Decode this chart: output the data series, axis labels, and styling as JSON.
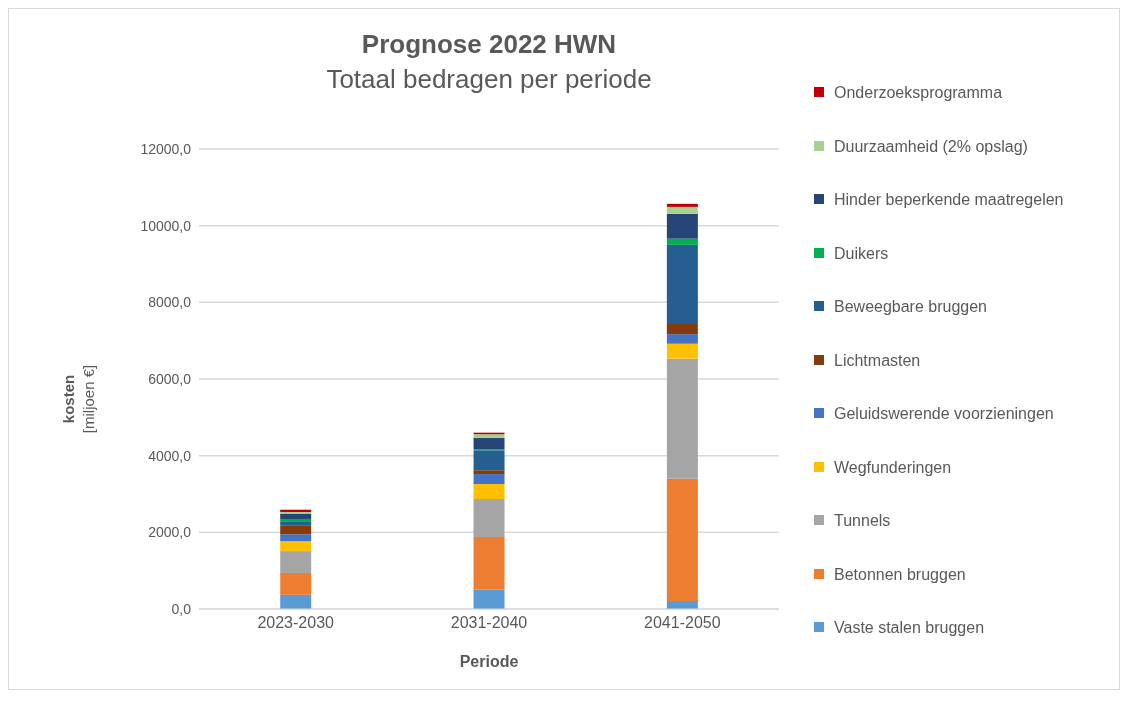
{
  "chart_data": {
    "type": "bar",
    "title": "Prognose 2022 HWN",
    "subtitle": "Totaal bedragen per periode",
    "xlabel": "Periode",
    "ylabel": "kosten [miljoen €]",
    "categories": [
      "2023-2030",
      "2031-2040",
      "2041-2050"
    ],
    "stacked": true,
    "series": [
      {
        "name": "Vaste stalen bruggen",
        "color": "#5b9bd5",
        "values": [
          370,
          500,
          210
        ]
      },
      {
        "name": "Betonnen bruggen",
        "color": "#ed7d31",
        "values": [
          570,
          1380,
          3190
        ]
      },
      {
        "name": "Tunnels",
        "color": "#a5a5a5",
        "values": [
          570,
          990,
          3130
        ]
      },
      {
        "name": "Wegfunderingen",
        "color": "#ffc000",
        "values": [
          260,
          390,
          390
        ]
      },
      {
        "name": "Geluidswerende voorzieningen",
        "color": "#4472c4",
        "values": [
          180,
          260,
          250
        ]
      },
      {
        "name": "Lichtmasten",
        "color": "#843c0c",
        "values": [
          220,
          100,
          290
        ]
      },
      {
        "name": "Beweegbare bruggen",
        "color": "#255e91",
        "values": [
          120,
          520,
          2040
        ]
      },
      {
        "name": "Duikers",
        "color": "#00b050",
        "values": [
          40,
          30,
          160
        ]
      },
      {
        "name": "Hinder beperkende maatregelen",
        "color": "#264478",
        "values": [
          160,
          290,
          650
        ]
      },
      {
        "name": "Duurzaamheid (2% opslag)",
        "color": "#a9d18e",
        "values": [
          40,
          100,
          180
        ]
      },
      {
        "name": "Onderzoeksprogramma",
        "color": "#c00000",
        "values": [
          60,
          40,
          80
        ]
      }
    ],
    "ylim": [
      0,
      12000
    ],
    "yticks": [
      {
        "value": 0,
        "label": "0,0"
      },
      {
        "value": 2000,
        "label": "2000,0"
      },
      {
        "value": 4000,
        "label": "4000,0"
      },
      {
        "value": 6000,
        "label": "6000,0"
      },
      {
        "value": 8000,
        "label": "8000,0"
      },
      {
        "value": 10000,
        "label": "10000,0"
      },
      {
        "value": 12000,
        "label": "12000,0"
      }
    ],
    "grid": "y",
    "legend": "right"
  }
}
